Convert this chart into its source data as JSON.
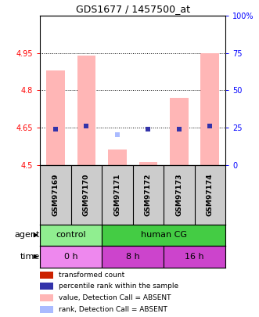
{
  "title": "GDS1677 / 1457500_at",
  "samples": [
    "GSM97169",
    "GSM97170",
    "GSM97171",
    "GSM97172",
    "GSM97173",
    "GSM97174"
  ],
  "ylim_left": [
    4.5,
    5.1
  ],
  "ylim_right": [
    0,
    100
  ],
  "yticks_left": [
    4.5,
    4.65,
    4.8,
    4.95
  ],
  "ytick_labels_left": [
    "4.5",
    "4.65",
    "4.8",
    "4.95"
  ],
  "yticks_right": [
    0,
    25,
    50,
    75,
    100
  ],
  "ytick_labels_right": [
    "0",
    "25",
    "50",
    "75",
    "100%"
  ],
  "bar_bottom": 4.5,
  "bar_top_values": [
    4.88,
    4.94,
    4.56,
    4.51,
    4.77,
    4.95
  ],
  "rank_marker_values": [
    4.645,
    4.657,
    4.628,
    4.642,
    4.645,
    4.657
  ],
  "rank_absent_marker_values": [
    null,
    null,
    4.622,
    null,
    null,
    null
  ],
  "agent_groups": [
    {
      "label": "control",
      "cols": [
        0,
        1
      ],
      "color": "#90ee90"
    },
    {
      "label": "human CG",
      "cols": [
        2,
        3,
        4,
        5
      ],
      "color": "#44cc44"
    }
  ],
  "time_groups": [
    {
      "label": "0 h",
      "cols": [
        0,
        1
      ],
      "color": "#ee88ee"
    },
    {
      "label": "8 h",
      "cols": [
        2,
        3
      ],
      "color": "#cc44cc"
    },
    {
      "label": "16 h",
      "cols": [
        4,
        5
      ],
      "color": "#cc44cc"
    }
  ],
  "bar_color_absent": "#ffb6b6",
  "rank_color_absent": "#aabbff",
  "rank_color_present": "#3333aa",
  "bg_color": "#ffffff",
  "label_area_bg": "#cccccc",
  "legend_items": [
    {
      "color": "#cc2200",
      "label": "transformed count"
    },
    {
      "color": "#3333aa",
      "label": "percentile rank within the sample"
    },
    {
      "color": "#ffb6b6",
      "label": "value, Detection Call = ABSENT"
    },
    {
      "color": "#aabbff",
      "label": "rank, Detection Call = ABSENT"
    }
  ]
}
